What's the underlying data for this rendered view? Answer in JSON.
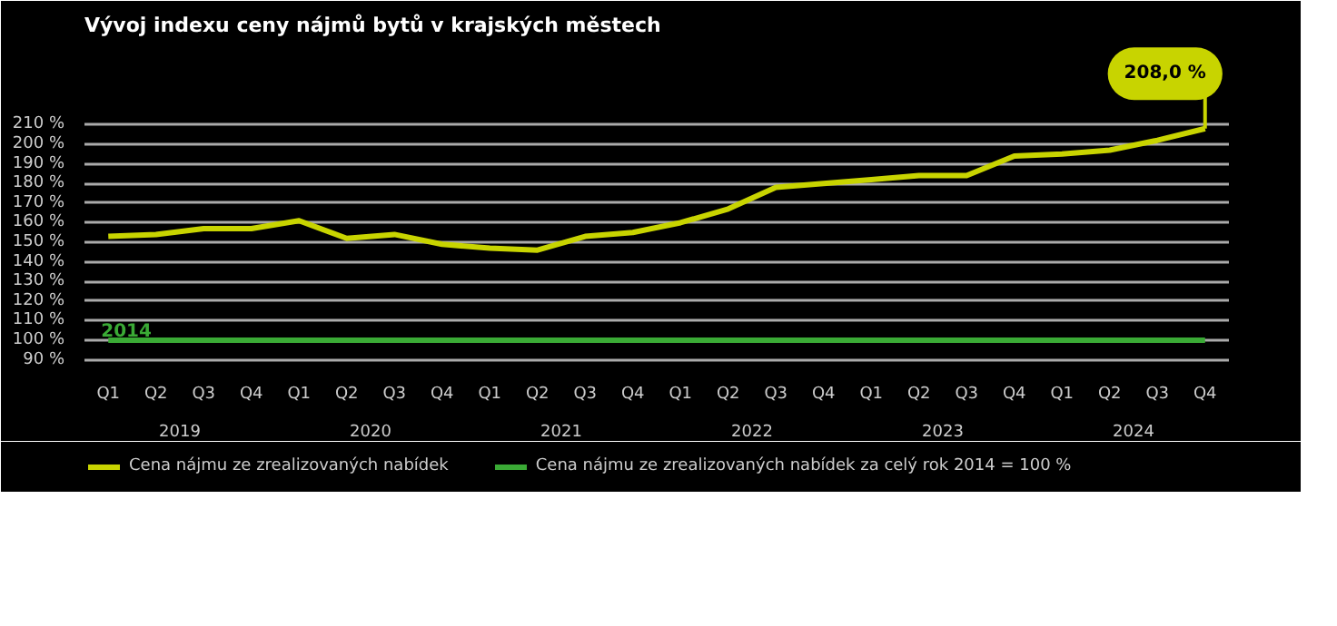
{
  "chart_data": {
    "type": "line",
    "title": "Vývoj indexu ceny nájmů bytů v krajských městech",
    "categories": [
      "Q1",
      "Q2",
      "Q3",
      "Q4",
      "Q1",
      "Q2",
      "Q3",
      "Q4",
      "Q1",
      "Q2",
      "Q3",
      "Q4",
      "Q1",
      "Q2",
      "Q3",
      "Q4",
      "Q1",
      "Q2",
      "Q3",
      "Q4",
      "Q1",
      "Q2",
      "Q3",
      "Q4"
    ],
    "series": [
      {
        "name": "Cena nájmu ze zrealizovaných nabídek",
        "color": "#c8d400",
        "values": [
          153,
          154,
          157,
          157,
          161,
          152,
          154,
          149,
          147,
          146,
          153,
          155,
          160,
          167,
          178,
          180,
          182,
          184,
          184,
          194,
          195,
          197,
          202,
          208
        ],
        "value_labels": [
          null,
          null,
          null,
          null,
          null,
          null,
          null,
          null,
          null,
          null,
          null,
          null,
          null,
          null,
          null,
          null,
          null,
          null,
          null,
          null,
          null,
          null,
          null,
          "208,0 %"
        ]
      },
      {
        "name": "Cena nájmu ze zrealizovaných nabídek za celý rok 2014 = 100 %",
        "color": "#3aaa35",
        "values": [
          100,
          100,
          100,
          100,
          100,
          100,
          100,
          100,
          100,
          100,
          100,
          100,
          100,
          100,
          100,
          100,
          100,
          100,
          100,
          100,
          100,
          100,
          100,
          100
        ]
      }
    ],
    "annotations": [
      "2019",
      "2020",
      "2021",
      "2022",
      "2023",
      "2024",
      {
        "text": "2014",
        "y": 100
      }
    ],
    "ylim": [
      88,
      250
    ],
    "yticks": [
      {
        "value": 90,
        "label": "90 %"
      },
      {
        "value": 100,
        "label": "100 %"
      },
      {
        "value": 110,
        "label": "110 %"
      },
      {
        "value": 120,
        "label": "120 %"
      },
      {
        "value": 130,
        "label": "130 %"
      },
      {
        "value": 140,
        "label": "140 %"
      },
      {
        "value": 150,
        "label": "150 %"
      },
      {
        "value": 160,
        "label": "160 %"
      },
      {
        "value": 170,
        "label": "170 %"
      },
      {
        "value": 180,
        "label": "180 %"
      },
      {
        "value": 190,
        "label": "190 %"
      },
      {
        "value": 200,
        "label": "200 %"
      },
      {
        "value": 210,
        "label": "210 %"
      }
    ],
    "grid": "y",
    "legend": "bottom",
    "marker": "none",
    "line_style": "solid"
  }
}
